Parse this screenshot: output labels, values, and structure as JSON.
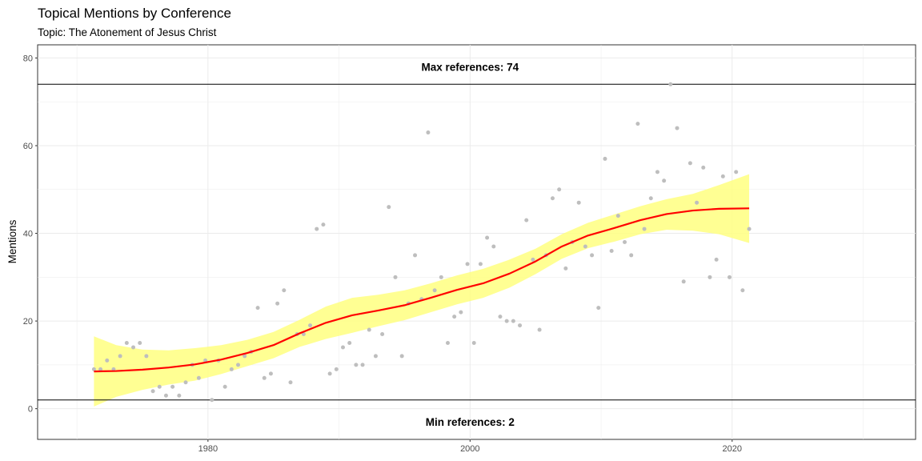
{
  "chart_data": {
    "type": "scatter",
    "title": "Topical Mentions by Conference",
    "subtitle": "Topic: The Atonement of Jesus Christ",
    "xlabel": "",
    "ylabel": "Mentions",
    "xlim": [
      1967,
      2034
    ],
    "ylim": [
      -7,
      83
    ],
    "x_ticks": [
      1980,
      2000,
      2020
    ],
    "x_tick_labels": [
      "1980",
      "2000",
      "2020"
    ],
    "y_ticks": [
      0,
      20,
      40,
      60,
      80
    ],
    "y_tick_labels": [
      "0",
      "20",
      "40",
      "60",
      "80"
    ],
    "grid": true,
    "legend": "none",
    "colors": {
      "points": "#bebebe",
      "smooth_line": "#ff0000",
      "confidence_band": "#ffff80",
      "reference_line": "#000000"
    },
    "reference_lines": [
      {
        "y": 74,
        "label": "Max references: 74",
        "label_x": 2000,
        "label_y": 78
      },
      {
        "y": 2,
        "label": "Min references: 2",
        "label_x": 2000,
        "label_y": -3
      }
    ],
    "points": [
      [
        1971.3,
        9
      ],
      [
        1971.8,
        9
      ],
      [
        1972.3,
        11
      ],
      [
        1972.8,
        9
      ],
      [
        1973.3,
        12
      ],
      [
        1973.8,
        15
      ],
      [
        1974.3,
        14
      ],
      [
        1974.8,
        15
      ],
      [
        1975.3,
        12
      ],
      [
        1975.8,
        4
      ],
      [
        1976.3,
        5
      ],
      [
        1976.8,
        3
      ],
      [
        1977.3,
        5
      ],
      [
        1977.8,
        3
      ],
      [
        1978.3,
        6
      ],
      [
        1978.8,
        10
      ],
      [
        1979.3,
        7
      ],
      [
        1979.8,
        11
      ],
      [
        1980.3,
        2
      ],
      [
        1980.8,
        11
      ],
      [
        1981.3,
        5
      ],
      [
        1981.8,
        9
      ],
      [
        1982.3,
        10
      ],
      [
        1982.8,
        12
      ],
      [
        1983.3,
        13
      ],
      [
        1983.8,
        23
      ],
      [
        1984.3,
        7
      ],
      [
        1984.8,
        8
      ],
      [
        1985.3,
        24
      ],
      [
        1985.8,
        27
      ],
      [
        1986.3,
        6
      ],
      [
        1986.8,
        17
      ],
      [
        1987.3,
        17
      ],
      [
        1987.8,
        19
      ],
      [
        1988.3,
        41
      ],
      [
        1988.8,
        42
      ],
      [
        1989.3,
        8
      ],
      [
        1989.8,
        9
      ],
      [
        1990.3,
        14
      ],
      [
        1990.8,
        15
      ],
      [
        1991.3,
        10
      ],
      [
        1991.8,
        10
      ],
      [
        1992.3,
        18
      ],
      [
        1992.8,
        12
      ],
      [
        1993.3,
        17
      ],
      [
        1993.8,
        46
      ],
      [
        1994.3,
        30
      ],
      [
        1994.8,
        12
      ],
      [
        1995.3,
        24
      ],
      [
        1995.8,
        35
      ],
      [
        1996.3,
        25
      ],
      [
        1996.8,
        63
      ],
      [
        1997.3,
        27
      ],
      [
        1997.8,
        30
      ],
      [
        1998.3,
        15
      ],
      [
        1998.8,
        21
      ],
      [
        1999.3,
        22
      ],
      [
        1999.8,
        33
      ],
      [
        2000.3,
        15
      ],
      [
        2000.8,
        33
      ],
      [
        2001.3,
        39
      ],
      [
        2001.8,
        37
      ],
      [
        2002.3,
        21
      ],
      [
        2002.8,
        20
      ],
      [
        2003.3,
        20
      ],
      [
        2003.8,
        19
      ],
      [
        2004.3,
        43
      ],
      [
        2004.8,
        34
      ],
      [
        2005.3,
        18
      ],
      [
        2005.8,
        35
      ],
      [
        2006.3,
        48
      ],
      [
        2006.8,
        50
      ],
      [
        2007.3,
        32
      ],
      [
        2007.8,
        38
      ],
      [
        2008.3,
        47
      ],
      [
        2008.8,
        37
      ],
      [
        2009.3,
        35
      ],
      [
        2009.8,
        23
      ],
      [
        2010.3,
        57
      ],
      [
        2010.8,
        36
      ],
      [
        2011.3,
        44
      ],
      [
        2011.8,
        38
      ],
      [
        2012.3,
        35
      ],
      [
        2012.8,
        65
      ],
      [
        2013.3,
        41
      ],
      [
        2013.8,
        48
      ],
      [
        2014.3,
        54
      ],
      [
        2014.8,
        52
      ],
      [
        2015.3,
        74
      ],
      [
        2015.8,
        64
      ],
      [
        2016.3,
        29
      ],
      [
        2016.8,
        56
      ],
      [
        2017.3,
        47
      ],
      [
        2017.8,
        55
      ],
      [
        2018.3,
        30
      ],
      [
        2018.8,
        34
      ],
      [
        2019.3,
        53
      ],
      [
        2019.8,
        30
      ],
      [
        2020.3,
        54
      ],
      [
        2020.8,
        27
      ],
      [
        2021.3,
        41
      ]
    ],
    "smooth": [
      [
        1971.3,
        8.5
      ],
      [
        1973,
        8.6
      ],
      [
        1975,
        8.9
      ],
      [
        1977,
        9.4
      ],
      [
        1979,
        10.1
      ],
      [
        1981,
        11.2
      ],
      [
        1983,
        12.7
      ],
      [
        1985,
        14.5
      ],
      [
        1987,
        17.2
      ],
      [
        1989,
        19.6
      ],
      [
        1991,
        21.3
      ],
      [
        1993,
        22.4
      ],
      [
        1995,
        23.6
      ],
      [
        1997,
        25.3
      ],
      [
        1999,
        27.1
      ],
      [
        2001,
        28.6
      ],
      [
        2003,
        30.8
      ],
      [
        2005,
        33.6
      ],
      [
        2007,
        37.0
      ],
      [
        2009,
        39.5
      ],
      [
        2011,
        41.2
      ],
      [
        2013,
        43.0
      ],
      [
        2015,
        44.4
      ],
      [
        2017,
        45.2
      ],
      [
        2019,
        45.6
      ],
      [
        2021.3,
        45.7
      ]
    ],
    "band_upper": [
      [
        1971.3,
        16.5
      ],
      [
        1973,
        14.5
      ],
      [
        1975,
        13.5
      ],
      [
        1977,
        13.3
      ],
      [
        1979,
        13.8
      ],
      [
        1981,
        14.5
      ],
      [
        1983,
        15.7
      ],
      [
        1985,
        17.5
      ],
      [
        1987,
        20.3
      ],
      [
        1989,
        23.3
      ],
      [
        1991,
        25.3
      ],
      [
        1993,
        26.0
      ],
      [
        1995,
        27.0
      ],
      [
        1997,
        28.6
      ],
      [
        1999,
        30.4
      ],
      [
        2001,
        31.9
      ],
      [
        2003,
        34.0
      ],
      [
        2005,
        36.5
      ],
      [
        2007,
        39.8
      ],
      [
        2009,
        42.4
      ],
      [
        2011,
        44.3
      ],
      [
        2013,
        46.2
      ],
      [
        2015,
        47.8
      ],
      [
        2017,
        49.0
      ],
      [
        2019,
        51.0
      ],
      [
        2021.3,
        53.5
      ]
    ],
    "band_lower": [
      [
        1971.3,
        0.5
      ],
      [
        1973,
        2.7
      ],
      [
        1975,
        4.3
      ],
      [
        1977,
        5.5
      ],
      [
        1979,
        6.4
      ],
      [
        1981,
        7.9
      ],
      [
        1983,
        9.7
      ],
      [
        1985,
        11.5
      ],
      [
        1987,
        14.1
      ],
      [
        1989,
        15.9
      ],
      [
        1991,
        17.3
      ],
      [
        1993,
        18.8
      ],
      [
        1995,
        20.2
      ],
      [
        1997,
        22.0
      ],
      [
        1999,
        23.8
      ],
      [
        2001,
        25.3
      ],
      [
        2003,
        27.6
      ],
      [
        2005,
        30.7
      ],
      [
        2007,
        34.2
      ],
      [
        2009,
        36.6
      ],
      [
        2011,
        38.1
      ],
      [
        2013,
        39.8
      ],
      [
        2015,
        40.8
      ],
      [
        2017,
        40.6
      ],
      [
        2019,
        39.8
      ],
      [
        2021.3,
        37.8
      ]
    ]
  }
}
